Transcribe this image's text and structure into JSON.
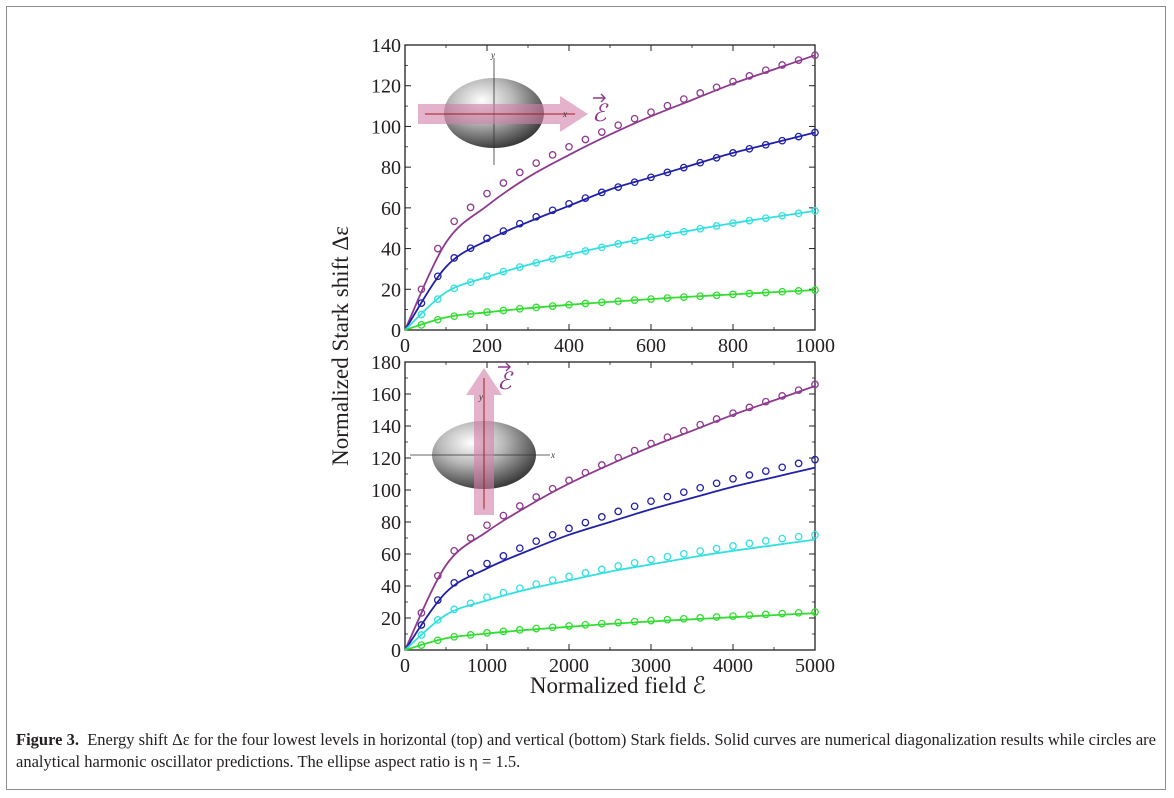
{
  "figure": {
    "caption_label": "Figure 3.",
    "caption_text": "Energy shift Δε for the four lowest levels in horizontal (top) and vertical (bottom) Stark fields. Solid curves are numerical diagonalization results while circles are analytical harmonic oscillator predictions. The ellipse aspect ratio is η = 1.5."
  },
  "colors": {
    "purple": "#8e3a8e",
    "blue": "#2020a8",
    "cyan": "#33e0e0",
    "green": "#33dd33"
  },
  "inset_icons": {
    "top": "ellipse-with-horizontal-field-arrow-icon",
    "bottom": "ellipse-with-vertical-field-arrow-icon"
  },
  "chart_data": [
    {
      "type": "line",
      "panel": "top",
      "xlim": [
        0,
        1000
      ],
      "ylim": [
        0,
        140
      ],
      "xticks": [
        "0",
        "200",
        "400",
        "600",
        "800",
        "1000"
      ],
      "yticks": [
        "0",
        "20",
        "40",
        "60",
        "80",
        "100",
        "120",
        "140"
      ],
      "ylabel": "Normalized Stark shift Δε",
      "field_label": "ℰ",
      "inset_axis_labels": {
        "x": "x",
        "y": "y"
      },
      "x": [
        0,
        100,
        200,
        300,
        400,
        500,
        600,
        700,
        800,
        900,
        1000
      ],
      "series": [
        {
          "color": "purple",
          "curve": [
            0,
            43,
            61,
            75,
            86,
            96,
            105,
            113,
            121,
            128,
            135
          ],
          "circles": [
            0,
            50,
            67,
            80,
            90,
            99,
            107,
            115,
            122,
            129,
            135
          ]
        },
        {
          "color": "blue",
          "curve": [
            0,
            31,
            44,
            53,
            61,
            69,
            75,
            81,
            87,
            92,
            97
          ],
          "circles": [
            0,
            33,
            45,
            54,
            62,
            69,
            75,
            81,
            87,
            92,
            97
          ]
        },
        {
          "color": "cyan",
          "curve": [
            0,
            18.5,
            26,
            32,
            37,
            41.5,
            45.5,
            49,
            52.5,
            55.5,
            58.5
          ],
          "circles": [
            0,
            19,
            26.5,
            32,
            37,
            41.5,
            45.5,
            49,
            52.5,
            55.5,
            58.5
          ]
        },
        {
          "color": "green",
          "curve": [
            0,
            6.2,
            8.7,
            10.7,
            12.4,
            13.8,
            15.2,
            16.4,
            17.5,
            18.6,
            19.6
          ],
          "circles": [
            0,
            6.3,
            8.8,
            10.8,
            12.4,
            13.9,
            15.2,
            16.4,
            17.5,
            18.6,
            19.6
          ]
        }
      ]
    },
    {
      "type": "line",
      "panel": "bottom",
      "xlim": [
        0,
        5000
      ],
      "ylim": [
        0,
        180
      ],
      "xticks": [
        "0",
        "1000",
        "2000",
        "3000",
        "4000",
        "5000"
      ],
      "yticks": [
        "0",
        "20",
        "40",
        "60",
        "80",
        "100",
        "120",
        "140",
        "160",
        "180"
      ],
      "xlabel": "Normalized field ℰ",
      "field_label": "ℰ",
      "inset_axis_labels": {
        "x": "x",
        "y": "y"
      },
      "x": [
        0,
        500,
        1000,
        1500,
        2000,
        2500,
        3000,
        3500,
        4000,
        4500,
        5000
      ],
      "series": [
        {
          "color": "purple",
          "curve": [
            0,
            53,
            74,
            90,
            104,
            116,
            127,
            137,
            147,
            156,
            165
          ],
          "circles": [
            0,
            58,
            78,
            93,
            106,
            118,
            129,
            139,
            148,
            157,
            166
          ]
        },
        {
          "color": "blue",
          "curve": [
            0,
            36,
            51,
            62,
            72,
            80,
            88,
            95,
            102,
            108,
            114
          ],
          "circles": [
            0,
            39,
            54,
            66,
            76,
            85,
            93,
            100,
            107,
            113,
            119
          ]
        },
        {
          "color": "cyan",
          "curve": [
            0,
            22,
            31,
            38,
            43.5,
            49,
            53.5,
            58,
            62,
            65.5,
            69
          ],
          "circles": [
            0,
            23.5,
            33,
            40,
            46,
            51.5,
            56.5,
            61,
            65,
            69,
            72
          ]
        },
        {
          "color": "green",
          "curve": [
            0,
            7.3,
            10.3,
            12.6,
            14.5,
            16.3,
            17.8,
            19.2,
            20.5,
            21.8,
            23
          ],
          "circles": [
            0,
            7.6,
            10.7,
            13,
            15,
            16.8,
            18.4,
            19.8,
            21.2,
            22.5,
            23.7
          ]
        }
      ]
    }
  ]
}
